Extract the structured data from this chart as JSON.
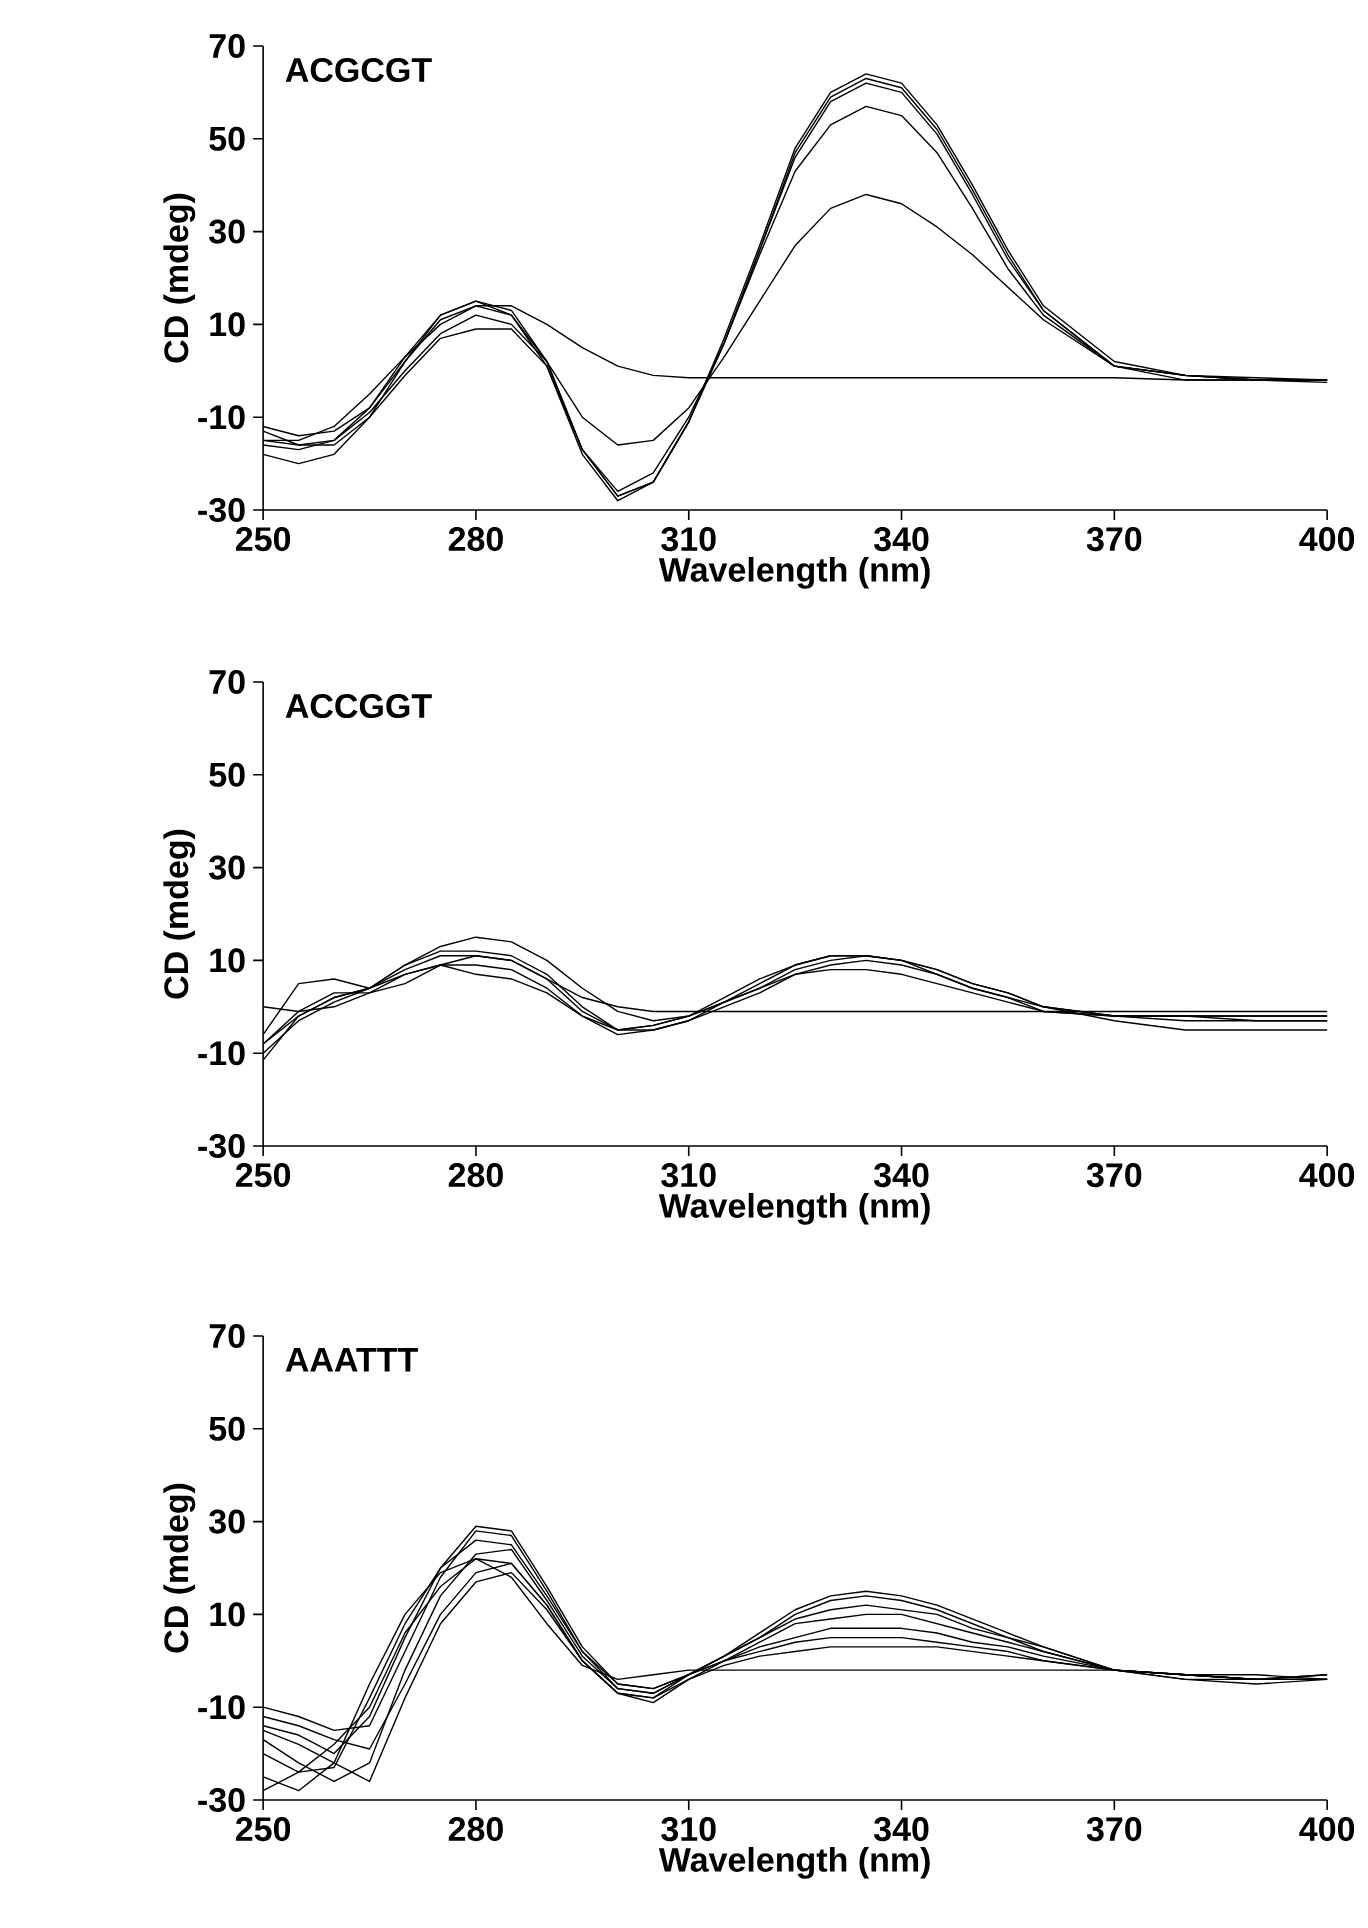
{
  "chart_data": [
    {
      "type": "line",
      "title": "ACGCGT",
      "xlabel": "Wavelength (nm)",
      "ylabel": "CD (mdeg)",
      "marker": "none",
      "line_style": "solid",
      "xlim": [
        250,
        400
      ],
      "ylim": [
        -30,
        70
      ],
      "xticks": [
        250,
        280,
        310,
        340,
        370,
        400
      ],
      "yticks": [
        -30,
        -10,
        10,
        30,
        50,
        70
      ],
      "x": [
        250,
        255,
        260,
        265,
        270,
        275,
        280,
        285,
        290,
        295,
        300,
        305,
        310,
        315,
        320,
        325,
        330,
        335,
        340,
        345,
        350,
        355,
        360,
        370,
        380,
        390,
        400
      ],
      "series": [
        {
          "color": "#000000",
          "values": [
            -15,
            -15,
            -12,
            -5,
            3,
            10,
            14,
            14,
            10,
            5,
            1,
            -1,
            -1.5,
            -1.5,
            -1.5,
            -1.5,
            -1.5,
            -1.5,
            -1.5,
            -1.5,
            -1.5,
            -1.5,
            -1.5,
            -1.5,
            -2,
            -2,
            -2
          ]
        },
        {
          "color": "#000000",
          "values": [
            -13,
            -16,
            -15,
            -9,
            0,
            8,
            12,
            10,
            2,
            -10,
            -16,
            -15,
            -8,
            3,
            15,
            27,
            35,
            38,
            36,
            31,
            25,
            18,
            11,
            1,
            -2,
            -2,
            -2.5
          ]
        },
        {
          "color": "#000000",
          "values": [
            -16,
            -17,
            -15,
            -8,
            2,
            11,
            14,
            12,
            2,
            -17,
            -26,
            -22,
            -10,
            6,
            25,
            43,
            53,
            57,
            55,
            47,
            35,
            22,
            12,
            1,
            -1,
            -2,
            -2
          ]
        },
        {
          "color": "#000000",
          "values": [
            -18,
            -20,
            -18,
            -10,
            2,
            12,
            15,
            12,
            1,
            -18,
            -28,
            -24,
            -11,
            6,
            26,
            47,
            59,
            63,
            61,
            52,
            39,
            25,
            13,
            1,
            -1,
            -2,
            -2
          ]
        },
        {
          "color": "#000000",
          "values": [
            -12,
            -14,
            -13,
            -8,
            3,
            12,
            15,
            13,
            2,
            -17,
            -27,
            -24,
            -11,
            7,
            27,
            48,
            60,
            64,
            62,
            53,
            40,
            26,
            14,
            2,
            -1,
            -1.5,
            -2
          ]
        },
        {
          "color": "#000000",
          "values": [
            -15,
            -16,
            -16,
            -10,
            -1,
            7,
            9,
            9,
            1,
            -17,
            -27,
            -24,
            -11,
            6,
            26,
            46,
            58,
            62,
            60,
            51,
            38,
            24,
            13,
            1,
            -1,
            -2,
            -2
          ]
        }
      ]
    },
    {
      "type": "line",
      "title": "ACCGGT",
      "xlabel": "Wavelength (nm)",
      "ylabel": "CD (mdeg)",
      "marker": "none",
      "line_style": "solid",
      "xlim": [
        250,
        400
      ],
      "ylim": [
        -30,
        70
      ],
      "xticks": [
        250,
        280,
        310,
        340,
        370,
        400
      ],
      "yticks": [
        -30,
        -10,
        10,
        30,
        50,
        70
      ],
      "x": [
        250,
        255,
        260,
        265,
        270,
        275,
        280,
        285,
        290,
        295,
        300,
        305,
        310,
        315,
        320,
        325,
        330,
        335,
        340,
        345,
        350,
        355,
        360,
        370,
        380,
        390,
        400
      ],
      "series": [
        {
          "color": "#000000",
          "values": [
            0,
            -1,
            0,
            3,
            7,
            9,
            11,
            10,
            6,
            2,
            0,
            -1,
            -1,
            -1,
            -1,
            -1,
            -1,
            -1,
            -1,
            -1,
            -1,
            -1,
            -1,
            -1,
            -1,
            -1,
            -1
          ]
        },
        {
          "color": "#000000",
          "values": [
            -10,
            -3,
            1,
            4,
            9,
            13,
            15,
            14,
            10,
            4,
            -1,
            -3,
            -2,
            1,
            4,
            8,
            10,
            11,
            10,
            8,
            5,
            3,
            0,
            -2,
            -2,
            -2,
            -2
          ]
        },
        {
          "color": "#000000",
          "values": [
            -6,
            5,
            6,
            4,
            9,
            12,
            12,
            11,
            7,
            0,
            -5,
            -5,
            -3,
            1,
            5,
            9,
            11,
            11,
            10,
            8,
            5,
            3,
            0,
            -2,
            -3,
            -3,
            -3
          ]
        },
        {
          "color": "#000000",
          "values": [
            -8,
            -2,
            2,
            4,
            8,
            11,
            11,
            10,
            6,
            -1,
            -5,
            -4,
            -2,
            2,
            6,
            9,
            11,
            11,
            10,
            7,
            4,
            2,
            0,
            -3,
            -5,
            -5,
            -5
          ]
        },
        {
          "color": "#000000",
          "values": [
            -8,
            -1,
            3,
            3,
            5,
            9,
            7,
            6,
            3,
            -2,
            -5,
            -4,
            -2,
            1,
            4,
            7,
            8,
            8,
            7,
            5,
            3,
            1,
            -1,
            -2,
            -2,
            -2,
            -2
          ]
        },
        {
          "color": "#000000",
          "values": [
            -11.5,
            -2,
            2,
            4,
            7,
            9,
            9,
            8,
            4,
            -2,
            -6,
            -5,
            -3,
            0,
            3,
            7,
            9,
            10,
            9,
            7,
            4,
            2,
            -1,
            -2,
            -2,
            -3,
            -3
          ]
        }
      ]
    },
    {
      "type": "line",
      "title": "AAATTT",
      "xlabel": "Wavelength (nm)",
      "ylabel": "CD (mdeg)",
      "marker": "none",
      "line_style": "solid",
      "xlim": [
        250,
        400
      ],
      "ylim": [
        -30,
        70
      ],
      "xticks": [
        250,
        280,
        310,
        340,
        370,
        400
      ],
      "yticks": [
        -30,
        -10,
        10,
        30,
        50,
        70
      ],
      "x": [
        250,
        255,
        260,
        265,
        270,
        275,
        280,
        285,
        290,
        295,
        300,
        305,
        310,
        315,
        320,
        325,
        330,
        335,
        340,
        345,
        350,
        355,
        360,
        370,
        380,
        390,
        400
      ],
      "series": [
        {
          "color": "#000000",
          "values": [
            -10,
            -12,
            -15,
            -14,
            2,
            18,
            28,
            27,
            15,
            2,
            -5,
            -6,
            -3,
            1,
            6,
            11,
            14,
            15,
            14,
            12,
            9,
            6,
            3,
            -2,
            -4,
            -5,
            -4
          ]
        },
        {
          "color": "#000000",
          "values": [
            -14,
            -16,
            -20,
            -12,
            5,
            20,
            29,
            28,
            16,
            3,
            -5,
            -6,
            -3,
            1,
            5,
            10,
            13,
            14,
            13,
            11,
            8,
            5,
            3,
            -2,
            -4,
            -4,
            -3
          ]
        },
        {
          "color": "#000000",
          "values": [
            -20,
            -24,
            -23,
            -8,
            8,
            20,
            26,
            25,
            14,
            2,
            -6,
            -7,
            -3,
            1,
            5,
            9,
            11,
            12,
            11,
            10,
            7,
            5,
            2,
            -2,
            -3,
            -4,
            -4
          ]
        },
        {
          "color": "#000000",
          "values": [
            -17,
            -22,
            -26,
            -22,
            -2,
            14,
            23,
            24,
            13,
            1,
            -6,
            -7,
            -3,
            0,
            4,
            8,
            9,
            10,
            10,
            8,
            6,
            4,
            2,
            -2,
            -3,
            -4,
            -3
          ]
        },
        {
          "color": "#000000",
          "values": [
            -25,
            -28,
            -22,
            -5,
            10,
            19,
            22,
            21,
            12,
            0,
            -7,
            -8,
            -3,
            0,
            3,
            5,
            7,
            7,
            7,
            6,
            4,
            3,
            1,
            -2,
            -3,
            -4,
            -4
          ]
        },
        {
          "color": "#000000",
          "values": [
            -12,
            -14,
            -17,
            -19,
            -5,
            10,
            19,
            21,
            12,
            0,
            -7,
            -9,
            -4,
            0,
            2,
            4,
            5,
            5,
            5,
            4,
            3,
            2,
            0,
            -2,
            -3,
            -4,
            -4
          ]
        },
        {
          "color": "#000000",
          "values": [
            -15,
            -18,
            -22,
            -26,
            -8,
            8,
            17,
            19,
            11,
            0,
            -7,
            -8,
            -4,
            -1,
            1,
            2,
            3,
            3,
            3,
            3,
            2,
            1,
            0,
            -2,
            -3,
            -4,
            -4
          ]
        },
        {
          "color": "#000000",
          "values": [
            -28,
            -24,
            -18,
            -10,
            6,
            16,
            22,
            18,
            8,
            -1,
            -4,
            -3,
            -2,
            -2,
            -2,
            -2,
            -2,
            -2,
            -2,
            -2,
            -2,
            -2,
            -2,
            -2,
            -3,
            -3,
            -4
          ]
        }
      ]
    }
  ]
}
